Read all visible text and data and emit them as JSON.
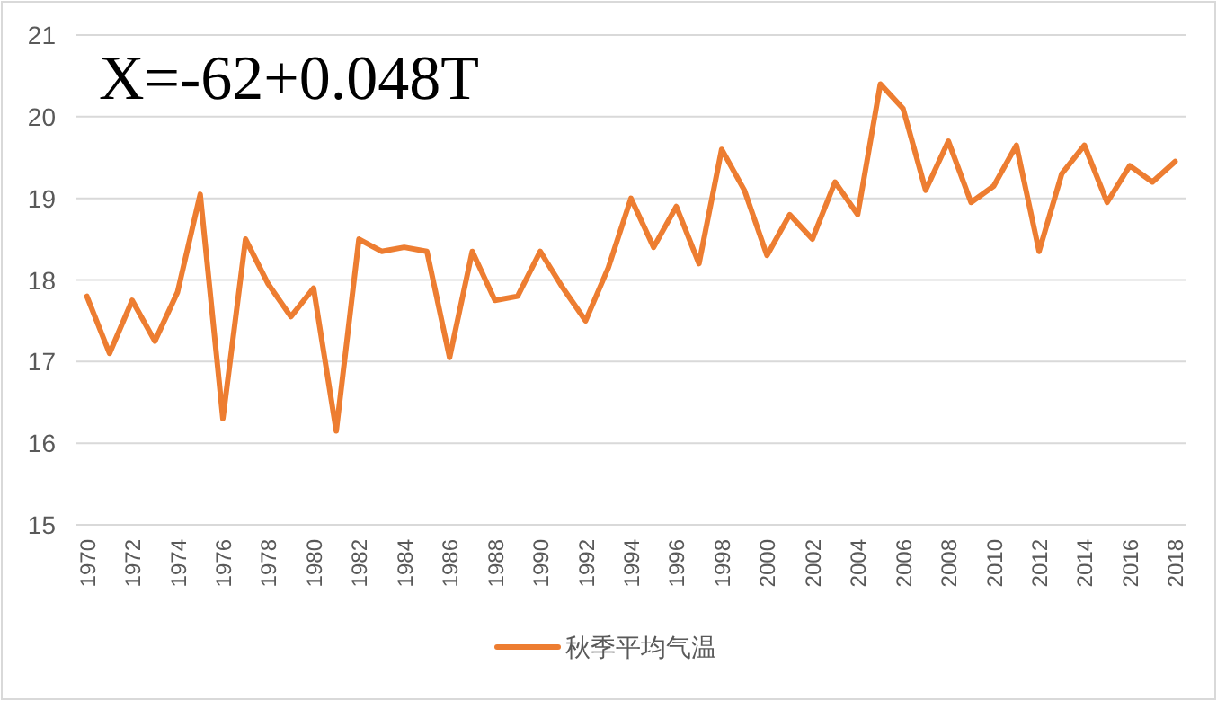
{
  "chart_data": {
    "type": "line",
    "x": [
      1970,
      1971,
      1972,
      1973,
      1974,
      1975,
      1976,
      1977,
      1978,
      1979,
      1980,
      1981,
      1982,
      1983,
      1984,
      1985,
      1986,
      1987,
      1988,
      1989,
      1990,
      1991,
      1992,
      1993,
      1994,
      1995,
      1996,
      1997,
      1998,
      1999,
      2000,
      2001,
      2002,
      2003,
      2004,
      2005,
      2006,
      2007,
      2008,
      2009,
      2010,
      2011,
      2012,
      2013,
      2014,
      2015,
      2016,
      2017,
      2018
    ],
    "series": [
      {
        "name": "秋季平均气温",
        "color": "#ed7d31",
        "values": [
          17.8,
          17.1,
          17.75,
          17.25,
          17.85,
          19.05,
          16.3,
          18.5,
          17.95,
          17.55,
          17.9,
          16.15,
          18.5,
          18.35,
          18.4,
          18.35,
          17.05,
          18.35,
          17.75,
          17.8,
          18.35,
          17.9,
          17.5,
          18.15,
          19.0,
          18.4,
          18.9,
          18.2,
          19.6,
          19.1,
          18.3,
          18.8,
          18.5,
          19.2,
          18.8,
          20.4,
          20.1,
          19.1,
          19.7,
          18.95,
          19.15,
          19.65,
          18.35,
          19.3,
          19.65,
          18.95,
          19.4,
          19.2,
          19.45
        ]
      }
    ],
    "xlim": [
      1969.5,
      2018.5
    ],
    "xticks": [
      1970,
      1972,
      1974,
      1976,
      1978,
      1980,
      1982,
      1984,
      1986,
      1988,
      1990,
      1992,
      1994,
      1996,
      1998,
      2000,
      2002,
      2004,
      2006,
      2008,
      2010,
      2012,
      2014,
      2016,
      2018
    ],
    "ylim": [
      15,
      21
    ],
    "yticks": [
      15,
      16,
      17,
      18,
      19,
      20,
      21
    ],
    "grid": "y",
    "legend": "bottom",
    "marker": "none",
    "line_style": "solid",
    "annotations": [
      "X=-62+0.048T"
    ]
  }
}
